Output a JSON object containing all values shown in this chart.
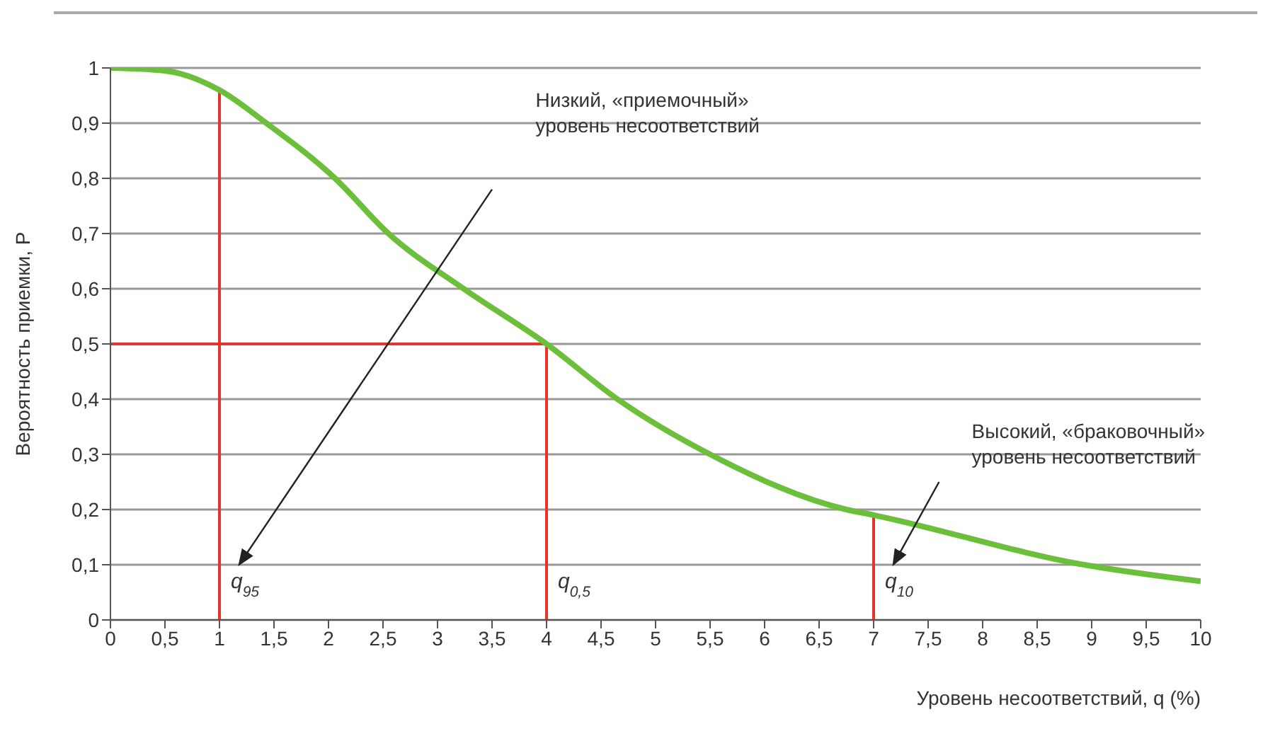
{
  "chart_data": {
    "type": "line",
    "xlabel": "Уровень несоответствий, q (%)",
    "ylabel": "Вероятность приемки, P",
    "xlim": [
      0,
      10
    ],
    "ylim": [
      0,
      1
    ],
    "xticks": [
      0,
      {
        "value": 0.5,
        "label": "0,5"
      },
      1,
      {
        "value": 1.5,
        "label": "1,5"
      },
      2,
      {
        "value": 2.5,
        "label": "2,5"
      },
      3,
      {
        "value": 3.5,
        "label": "3,5"
      },
      4,
      {
        "value": 4.5,
        "label": "4,5"
      },
      5,
      {
        "value": 5.5,
        "label": "5,5"
      },
      6,
      {
        "value": 6.5,
        "label": "6,5"
      },
      7,
      {
        "value": 7.5,
        "label": "7,5"
      },
      8,
      {
        "value": 8.5,
        "label": "8,5"
      },
      9,
      {
        "value": 9.5,
        "label": "9,5"
      },
      10
    ],
    "yticks": [
      0,
      {
        "value": 0.1,
        "label": "0,1"
      },
      {
        "value": 0.2,
        "label": "0,2"
      },
      {
        "value": 0.3,
        "label": "0,3"
      },
      {
        "value": 0.4,
        "label": "0,4"
      },
      {
        "value": 0.5,
        "label": "0,5"
      },
      {
        "value": 0.6,
        "label": "0,6"
      },
      {
        "value": 0.7,
        "label": "0,7"
      },
      {
        "value": 0.8,
        "label": "0,8"
      },
      {
        "value": 0.9,
        "label": "0,9"
      },
      1
    ],
    "grid": "y",
    "marker": "none",
    "line_style": "solid",
    "series": [
      {
        "color": "#e8322e",
        "x": [
          1,
          1
        ],
        "values": [
          0,
          0.96
        ]
      },
      {
        "color": "#e8322e",
        "x": [
          4,
          4
        ],
        "values": [
          0,
          0.5
        ]
      },
      {
        "color": "#e8322e",
        "x": [
          0,
          4
        ],
        "values": [
          0.5,
          0.5
        ]
      },
      {
        "color": "#e8322e",
        "x": [
          7,
          7
        ],
        "values": [
          0,
          0.19
        ]
      },
      {
        "color": "#6cbf3a",
        "x": [
          0,
          0.5,
          1,
          1.43,
          2.06,
          2.55,
          3.24,
          4,
          4.65,
          5.5,
          6.75,
          7,
          8.93,
          10
        ],
        "values": [
          1,
          0.995,
          0.96,
          0.9,
          0.8,
          0.7,
          0.6,
          0.5,
          0.4,
          0.3,
          0.2,
          0.19,
          0.1,
          0.07
        ]
      }
    ],
    "annotations": [
      "Низкий, «приемочный»\nуровень несоответствий",
      "Высокий, «браковочный»\nуровень несоответствий",
      {
        "text": "q$_{95}$",
        "x": 1,
        "y": 0.07
      },
      {
        "text": "q$_{0,5}$",
        "x": 4,
        "y": 0.07
      },
      {
        "text": "q$_{10}$",
        "x": 7,
        "y": 0.07
      }
    ]
  }
}
